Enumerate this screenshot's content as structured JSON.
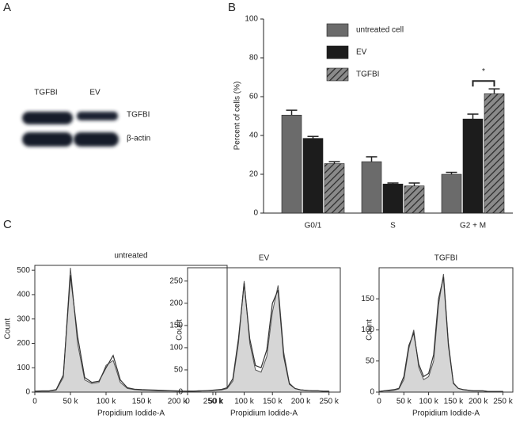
{
  "panel_labels": [
    "A",
    "B",
    "C"
  ],
  "blot": {
    "lanes": [
      "TGFBI",
      "EV"
    ],
    "rows": [
      "TGFBI",
      "β-actin"
    ]
  },
  "chart_data": [
    {
      "type": "bar",
      "categories": [
        "G0/1",
        "S",
        "G2 + M"
      ],
      "ylabel": "Percent of cells (%)",
      "ylim": [
        0,
        100
      ],
      "yticks": [
        0,
        20,
        40,
        60,
        80,
        100
      ],
      "legend": "top",
      "annotation": "*",
      "series": [
        {
          "name": "untreated cell",
          "color": "#6b6b6b",
          "values": [
            50.5,
            26.5,
            20
          ],
          "errors": [
            2.5,
            2.5,
            1
          ]
        },
        {
          "name": "EV",
          "color": "#1c1c1c",
          "values": [
            38.5,
            15,
            48.5
          ],
          "errors": [
            1,
            0.5,
            2.5
          ]
        },
        {
          "name": "TGFBI",
          "color": "#8a8a8a",
          "pattern": "hatch",
          "values": [
            25.5,
            14,
            61.5
          ],
          "errors": [
            1,
            1.5,
            2.5
          ]
        }
      ]
    },
    {
      "type": "histogram-line",
      "title": "untreated",
      "xlabel": "Propidium Iodide-A",
      "ylabel": "Count",
      "xlim": [
        0,
        270000
      ],
      "ylim": [
        0,
        520
      ],
      "yticks": [
        0,
        100,
        200,
        300,
        400,
        500
      ],
      "xticks": [
        0,
        {
          "value": 50000,
          "label": "50 k"
        },
        {
          "value": 100000,
          "label": "100 k"
        },
        {
          "value": 150000,
          "label": "150 k"
        },
        {
          "value": 200000,
          "label": "200 k"
        },
        {
          "value": 250000,
          "label": "250 k"
        }
      ],
      "x": [
        0,
        10000,
        20000,
        30000,
        40000,
        50000,
        60000,
        70000,
        80000,
        90000,
        100000,
        110000,
        120000,
        130000,
        140000,
        150000,
        160000,
        170000,
        180000,
        190000,
        200000,
        210000,
        220000,
        230000,
        240000,
        250000
      ],
      "series": [
        {
          "style": "area",
          "color": "#d6d6d6",
          "values": [
            3,
            4,
            4,
            8,
            60,
            510,
            200,
            50,
            35,
            40,
            110,
            130,
            40,
            15,
            10,
            8,
            7,
            6,
            5,
            5,
            4,
            4,
            3,
            3,
            2,
            2
          ]
        },
        {
          "style": "line",
          "color": "#333333",
          "values": [
            4,
            5,
            5,
            10,
            70,
            480,
            230,
            60,
            40,
            45,
            100,
            150,
            50,
            18,
            12,
            10,
            9,
            8,
            7,
            6,
            5,
            4,
            4,
            3,
            3,
            2
          ]
        }
      ]
    },
    {
      "type": "histogram-line",
      "title": "EV",
      "xlabel": "Propidium Iodide-A",
      "ylabel": "Count",
      "xlim": [
        0,
        270000
      ],
      "ylim": [
        0,
        280
      ],
      "yticks": [
        0,
        50,
        100,
        150,
        200,
        250
      ],
      "xticks": [
        0,
        {
          "value": 50000,
          "label": "50 k"
        },
        {
          "value": 100000,
          "label": "100 k"
        },
        {
          "value": 150000,
          "label": "150 k"
        },
        {
          "value": 200000,
          "label": "200 k"
        },
        {
          "value": 250000,
          "label": "250 k"
        }
      ],
      "x": [
        0,
        10000,
        20000,
        30000,
        40000,
        50000,
        60000,
        70000,
        80000,
        90000,
        100000,
        110000,
        120000,
        130000,
        140000,
        150000,
        160000,
        170000,
        180000,
        190000,
        200000,
        210000,
        220000,
        230000,
        240000,
        250000
      ],
      "series": [
        {
          "style": "area",
          "color": "#d6d6d6",
          "values": [
            2,
            2,
            2,
            3,
            3,
            4,
            5,
            8,
            25,
            110,
            250,
            110,
            50,
            45,
            80,
            180,
            240,
            90,
            20,
            8,
            5,
            4,
            3,
            3,
            2,
            2
          ]
        },
        {
          "style": "line",
          "color": "#333333",
          "values": [
            2,
            2,
            3,
            3,
            4,
            5,
            6,
            10,
            30,
            120,
            245,
            120,
            60,
            55,
            95,
            200,
            230,
            80,
            18,
            8,
            5,
            4,
            3,
            3,
            2,
            2
          ]
        }
      ]
    },
    {
      "type": "histogram-line",
      "title": "TGFBI",
      "xlabel": "Propidium Iodide-A",
      "ylabel": "Count",
      "xlim": [
        0,
        270000
      ],
      "ylim": [
        0,
        200
      ],
      "yticks": [
        0,
        50,
        100,
        150
      ],
      "xticks": [
        0,
        {
          "value": 50000,
          "label": "50 k"
        },
        {
          "value": 100000,
          "label": "100 k"
        },
        {
          "value": 150000,
          "label": "150 k"
        },
        {
          "value": 200000,
          "label": "200 k"
        },
        {
          "value": 250000,
          "label": "250 k"
        }
      ],
      "x": [
        0,
        10000,
        20000,
        30000,
        40000,
        50000,
        60000,
        70000,
        80000,
        90000,
        100000,
        110000,
        120000,
        130000,
        140000,
        150000,
        160000,
        170000,
        180000,
        190000,
        200000,
        210000,
        220000,
        230000,
        240000,
        250000
      ],
      "series": [
        {
          "style": "area",
          "color": "#d6d6d6",
          "values": [
            1,
            2,
            2,
            3,
            5,
            20,
            70,
            100,
            40,
            20,
            25,
            50,
            140,
            190,
            80,
            15,
            6,
            4,
            3,
            2,
            2,
            2,
            1,
            1,
            1,
            1
          ]
        },
        {
          "style": "line",
          "color": "#333333",
          "values": [
            1,
            2,
            3,
            4,
            6,
            25,
            75,
            95,
            45,
            25,
            30,
            60,
            150,
            185,
            75,
            14,
            6,
            4,
            3,
            2,
            2,
            2,
            1,
            1,
            1,
            1
          ]
        }
      ]
    }
  ]
}
